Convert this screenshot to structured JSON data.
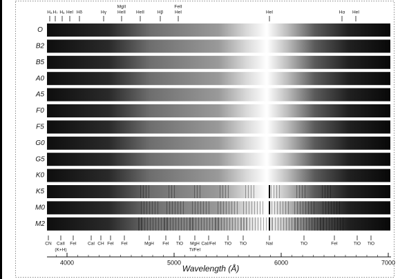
{
  "spectral_types": [
    "O",
    "B2",
    "B5",
    "A0",
    "A5",
    "F0",
    "F5",
    "G0",
    "G5",
    "K0",
    "K5",
    "M0",
    "M2"
  ],
  "top_lines": [
    "H₈",
    "H₇",
    "H₆",
    "HeI",
    "Hδ",
    "Hγ",
    "MgII",
    "HeII",
    "HeII",
    "Hβ",
    "FeII",
    "HeI",
    "HeI",
    "Hα",
    "HeI"
  ],
  "bottom_lines": [
    "CN",
    "CaII",
    "(K+H)",
    "FeI",
    "CaI",
    "CH",
    "FeI",
    "FeI",
    "MgH",
    "FeI",
    "TiO",
    "MgH",
    "Ti/FeI",
    "CaI/FeI",
    "TiO",
    "TiO",
    "NaI",
    "TiO",
    "FeI",
    "TiO",
    "TiO"
  ],
  "axis": {
    "ticks": [
      4000,
      5000,
      6000,
      7000
    ],
    "label": "Wavelength (Å)"
  }
}
